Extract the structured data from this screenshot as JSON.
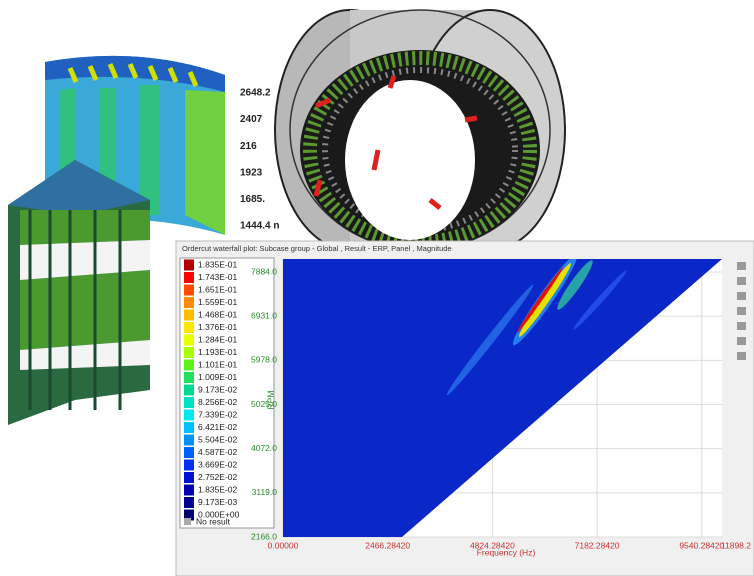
{
  "window": {
    "title": "Ordercut waterfall plot: Subcase group - Global , Result - ERP, Panel , Magnitude"
  },
  "legend": {
    "entries": [
      {
        "label": "1.835E-01",
        "color": "#b00000"
      },
      {
        "label": "1.743E-01",
        "color": "#ff0000"
      },
      {
        "label": "1.651E-01",
        "color": "#ff4a00"
      },
      {
        "label": "1.559E-01",
        "color": "#ff8c00"
      },
      {
        "label": "1.468E-01",
        "color": "#ffbf00"
      },
      {
        "label": "1.376E-01",
        "color": "#ffe600"
      },
      {
        "label": "1.284E-01",
        "color": "#e8ff00"
      },
      {
        "label": "1.193E-01",
        "color": "#a8ff00"
      },
      {
        "label": "1.101E-01",
        "color": "#60f020"
      },
      {
        "label": "1.009E-01",
        "color": "#20e060"
      },
      {
        "label": "9.173E-02",
        "color": "#00d890"
      },
      {
        "label": "8.256E-02",
        "color": "#00e0c0"
      },
      {
        "label": "7.339E-02",
        "color": "#00e8f0"
      },
      {
        "label": "6.421E-02",
        "color": "#00c0ff"
      },
      {
        "label": "5.504E-02",
        "color": "#0090ff"
      },
      {
        "label": "4.587E-02",
        "color": "#0060ff"
      },
      {
        "label": "3.669E-02",
        "color": "#0030f0"
      },
      {
        "label": "2.752E-02",
        "color": "#0010d0"
      },
      {
        "label": "1.835E-02",
        "color": "#0000b0"
      },
      {
        "label": "9.173E-03",
        "color": "#000090"
      },
      {
        "label": "0.000E+00",
        "color": "#000070"
      }
    ],
    "no_result": "No result"
  },
  "plot": {
    "x_axis_title": "Frequency (Hz)",
    "y_axis_title": "RPM",
    "yticks": [
      "7884.0",
      "6931.0",
      "5978.0",
      "5025.0",
      "4072.0",
      "3119.0",
      "2166.0"
    ],
    "xticks": [
      "0.00000",
      "2466.28420",
      "4824.28420",
      "7182.28420",
      "9540.28420",
      "11898.2"
    ]
  },
  "background_labels": [
    "2648.2",
    "2407",
    "216",
    "1923",
    "1685.",
    "1444.4 n"
  ]
}
